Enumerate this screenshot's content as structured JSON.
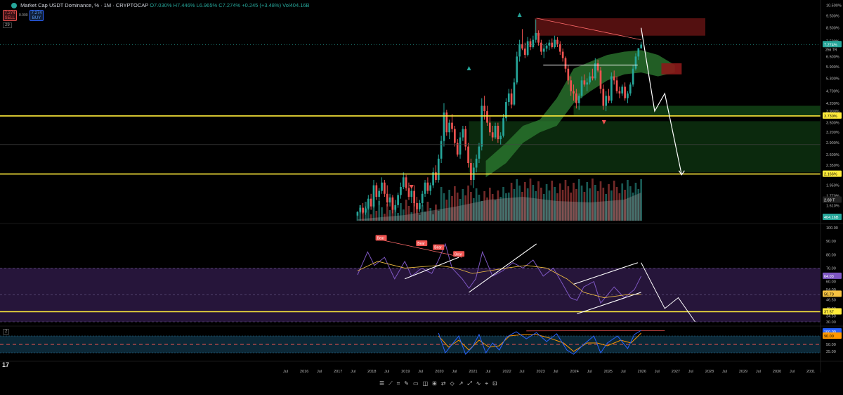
{
  "header": {
    "title": "Market Cap USDT Dominance, %",
    "interval": "1M",
    "source": "CRYPTOCAP",
    "open": "O7.030%",
    "high": "H7.446%",
    "low": "L6.965%",
    "close": "C7.274%",
    "change": "+0.245 (+3.48%)",
    "volume": "Vol404.16B",
    "sell_price": "7.274",
    "sell_label": "SELL",
    "buy_price": "7.274",
    "buy_label": "BUY",
    "spread": "0.000",
    "indicator_count": "29",
    "stoch_count": "2"
  },
  "colors": {
    "up": "#26a69a",
    "down": "#ef5350",
    "support": "#ffeb3b",
    "rsi": "#7e57c2",
    "rsi_ma": "#f5c242",
    "stoch_k": "#2962ff",
    "stoch_d": "#ff9800",
    "cloud": "#2e7d32",
    "resistance": "#8b1a1a"
  },
  "icons": [
    "trading-view-logo-icon",
    "chart-toolbar-icons"
  ],
  "chart_data": [
    {
      "type": "candlestick",
      "title": "Market Cap USDT Dominance, %",
      "scale": "log",
      "price_axis": [
        "10.500%",
        "9.500%",
        "8.500%",
        "7.500%",
        "6.500%",
        "5.900%",
        "5.300%",
        "4.700%",
        "4.200%",
        "3.900%",
        "3.500%",
        "3.200%",
        "2.900%",
        "2.600%",
        "2.350%",
        "1.950%",
        "1.770%",
        "1.610%",
        "1.470%"
      ],
      "price_labels": {
        "current": "7.274%",
        "current_sub": "256 TR",
        "level_high": "3.730%",
        "level_low": "2.166%",
        "volume_value": "2.69 T",
        "volume_total": "404.16B"
      },
      "levels": {
        "support_1": 3.73,
        "support_2": 2.166
      },
      "candles": [
        [
          2017.6,
          1.47,
          1.53,
          1.46,
          1.52
        ],
        [
          2017.68,
          1.52,
          1.62,
          1.5,
          1.58
        ],
        [
          2017.76,
          1.58,
          1.65,
          1.49,
          1.51
        ],
        [
          2017.84,
          1.51,
          1.6,
          1.48,
          1.57
        ],
        [
          2017.92,
          1.57,
          1.78,
          1.55,
          1.72
        ],
        [
          2018.0,
          1.72,
          1.8,
          1.55,
          1.6
        ],
        [
          2018.08,
          1.6,
          2.05,
          1.58,
          1.95
        ],
        [
          2018.16,
          1.95,
          2.0,
          1.7,
          1.75
        ],
        [
          2018.24,
          1.75,
          1.9,
          1.62,
          1.85
        ],
        [
          2018.32,
          1.85,
          2.1,
          1.8,
          2.0
        ],
        [
          2018.4,
          2.0,
          2.05,
          1.75,
          1.8
        ],
        [
          2018.48,
          1.8,
          1.95,
          1.6,
          1.66
        ],
        [
          2018.56,
          1.66,
          1.8,
          1.6,
          1.74
        ],
        [
          2018.64,
          1.74,
          1.78,
          1.5,
          1.55
        ],
        [
          2018.72,
          1.55,
          1.7,
          1.52,
          1.62
        ],
        [
          2018.8,
          1.62,
          1.82,
          1.58,
          1.78
        ],
        [
          2018.88,
          1.78,
          2.0,
          1.72,
          1.92
        ],
        [
          2018.96,
          1.92,
          2.2,
          1.88,
          2.1
        ],
        [
          2019.04,
          2.1,
          2.15,
          1.85,
          1.9
        ],
        [
          2019.12,
          1.9,
          2.0,
          1.7,
          1.75
        ],
        [
          2019.2,
          1.75,
          1.9,
          1.65,
          1.85
        ],
        [
          2019.28,
          1.85,
          1.95,
          1.6,
          1.65
        ],
        [
          2019.36,
          1.65,
          1.75,
          1.5,
          1.56
        ],
        [
          2019.44,
          1.56,
          1.7,
          1.52,
          1.65
        ],
        [
          2019.52,
          1.65,
          1.85,
          1.6,
          1.8
        ],
        [
          2019.6,
          1.8,
          2.05,
          1.75,
          2.0
        ],
        [
          2019.68,
          2.0,
          2.1,
          1.8,
          1.85
        ],
        [
          2019.76,
          1.85,
          2.0,
          1.78,
          1.95
        ],
        [
          2019.84,
          1.95,
          2.3,
          1.9,
          2.2
        ],
        [
          2019.92,
          2.2,
          2.35,
          2.0,
          2.05
        ],
        [
          2020.0,
          2.05,
          2.6,
          2.0,
          2.5
        ],
        [
          2020.08,
          2.5,
          3.1,
          2.4,
          2.95
        ],
        [
          2020.16,
          2.95,
          4.2,
          2.8,
          3.85
        ],
        [
          2020.24,
          3.85,
          3.95,
          3.1,
          3.2
        ],
        [
          2020.32,
          3.2,
          3.6,
          3.0,
          3.5
        ],
        [
          2020.4,
          3.5,
          3.8,
          3.2,
          3.3
        ],
        [
          2020.48,
          3.3,
          3.4,
          2.8,
          2.9
        ],
        [
          2020.56,
          2.9,
          3.0,
          2.55,
          2.6
        ],
        [
          2020.64,
          2.6,
          3.2,
          2.5,
          3.05
        ],
        [
          2020.72,
          3.05,
          3.4,
          2.95,
          3.3
        ],
        [
          2020.8,
          3.3,
          3.4,
          2.7,
          2.8
        ],
        [
          2020.88,
          2.8,
          2.9,
          2.3,
          2.4
        ],
        [
          2020.96,
          2.4,
          2.5,
          1.95,
          2.05
        ],
        [
          2021.04,
          2.05,
          2.4,
          1.9,
          2.3
        ],
        [
          2021.12,
          2.3,
          2.6,
          2.2,
          2.5
        ],
        [
          2021.2,
          2.5,
          2.9,
          2.4,
          2.8
        ],
        [
          2021.28,
          2.8,
          4.4,
          2.7,
          4.1
        ],
        [
          2021.36,
          4.1,
          4.5,
          3.6,
          3.9
        ],
        [
          2021.44,
          3.9,
          4.1,
          3.4,
          3.5
        ],
        [
          2021.52,
          3.5,
          3.7,
          3.1,
          3.2
        ],
        [
          2021.6,
          3.2,
          3.4,
          2.95,
          3.05
        ],
        [
          2021.68,
          3.05,
          3.5,
          3.0,
          3.4
        ],
        [
          2021.76,
          3.4,
          3.5,
          2.9,
          3.0
        ],
        [
          2021.84,
          3.0,
          3.2,
          2.85,
          3.1
        ],
        [
          2021.92,
          3.1,
          3.8,
          3.05,
          3.65
        ],
        [
          2022.0,
          3.65,
          4.4,
          3.55,
          4.25
        ],
        [
          2022.08,
          4.25,
          4.8,
          4.1,
          4.6
        ],
        [
          2022.16,
          4.6,
          4.8,
          4.0,
          4.15
        ],
        [
          2022.24,
          4.15,
          5.3,
          4.1,
          5.1
        ],
        [
          2022.32,
          5.1,
          6.8,
          5.0,
          6.5
        ],
        [
          2022.4,
          6.5,
          7.6,
          6.2,
          7.3
        ],
        [
          2022.48,
          7.3,
          8.4,
          6.9,
          7.0
        ],
        [
          2022.56,
          7.0,
          7.4,
          6.4,
          6.6
        ],
        [
          2022.64,
          6.6,
          7.8,
          6.5,
          7.5
        ],
        [
          2022.72,
          7.5,
          7.7,
          6.9,
          7.1
        ],
        [
          2022.8,
          7.1,
          7.9,
          7.0,
          7.6
        ],
        [
          2022.88,
          7.6,
          9.2,
          7.4,
          8.1
        ],
        [
          2022.96,
          8.1,
          8.3,
          7.2,
          7.4
        ],
        [
          2023.04,
          7.4,
          7.6,
          6.6,
          6.8
        ],
        [
          2023.12,
          6.8,
          7.3,
          6.4,
          7.0
        ],
        [
          2023.2,
          7.0,
          7.4,
          6.8,
          7.2
        ],
        [
          2023.28,
          7.2,
          7.6,
          6.9,
          7.4
        ],
        [
          2023.36,
          7.4,
          7.7,
          7.0,
          7.1
        ],
        [
          2023.44,
          7.1,
          7.9,
          7.0,
          7.6
        ],
        [
          2023.52,
          7.6,
          7.8,
          7.1,
          7.3
        ],
        [
          2023.6,
          7.3,
          7.5,
          6.6,
          6.8
        ],
        [
          2023.68,
          6.8,
          7.0,
          6.2,
          6.4
        ],
        [
          2023.76,
          6.4,
          6.5,
          5.6,
          5.8
        ],
        [
          2023.84,
          5.8,
          6.0,
          5.0,
          5.2
        ],
        [
          2023.92,
          5.2,
          5.4,
          4.5,
          4.7
        ],
        [
          2024.0,
          4.7,
          5.0,
          4.3,
          4.6
        ],
        [
          2024.08,
          4.6,
          4.8,
          4.0,
          4.2
        ],
        [
          2024.16,
          4.2,
          4.6,
          3.95,
          4.5
        ],
        [
          2024.24,
          4.5,
          5.4,
          4.4,
          5.2
        ],
        [
          2024.32,
          5.2,
          5.5,
          4.9,
          5.0
        ],
        [
          2024.4,
          5.0,
          5.3,
          4.7,
          5.1
        ],
        [
          2024.48,
          5.1,
          5.6,
          5.0,
          5.4
        ],
        [
          2024.56,
          5.4,
          5.8,
          5.2,
          5.3
        ],
        [
          2024.64,
          5.3,
          6.4,
          5.2,
          6.1
        ],
        [
          2024.72,
          6.1,
          6.3,
          5.6,
          5.7
        ],
        [
          2024.8,
          5.7,
          5.9,
          4.6,
          4.8
        ],
        [
          2024.88,
          4.8,
          5.0,
          3.95,
          4.1
        ],
        [
          2024.96,
          4.1,
          4.7,
          3.9,
          4.5
        ],
        [
          2025.04,
          4.5,
          4.8,
          4.2,
          4.3
        ],
        [
          2025.12,
          4.3,
          5.6,
          4.2,
          5.4
        ],
        [
          2025.2,
          5.4,
          5.7,
          5.0,
          5.2
        ],
        [
          2025.28,
          5.2,
          5.4,
          4.6,
          4.7
        ],
        [
          2025.36,
          4.7,
          4.9,
          4.4,
          4.6
        ],
        [
          2025.44,
          4.6,
          5.0,
          4.5,
          4.9
        ],
        [
          2025.52,
          4.9,
          5.1,
          4.3,
          4.4
        ],
        [
          2025.6,
          4.4,
          4.7,
          4.2,
          4.6
        ],
        [
          2025.68,
          4.6,
          5.1,
          4.5,
          5.0
        ],
        [
          2025.76,
          5.0,
          6.0,
          4.9,
          5.8
        ],
        [
          2025.84,
          5.8,
          6.7,
          5.7,
          6.5
        ],
        [
          2025.92,
          6.5,
          7.0,
          6.3,
          7.03
        ],
        [
          2026.0,
          7.03,
          7.45,
          6.97,
          7.27
        ]
      ],
      "cloud_band": [
        [
          2021.4,
          2.1,
          2.45
        ],
        [
          2022.0,
          2.4,
          2.9
        ],
        [
          2022.5,
          2.9,
          3.4
        ],
        [
          2023.0,
          3.2,
          3.6
        ],
        [
          2023.5,
          3.4,
          4.4
        ],
        [
          2024.0,
          4.2,
          5.8
        ],
        [
          2024.5,
          4.7,
          6.2
        ],
        [
          2025.0,
          5.2,
          6.6
        ],
        [
          2025.5,
          5.5,
          6.8
        ],
        [
          2026.0,
          5.6,
          6.9
        ],
        [
          2026.5,
          5.4,
          6.6
        ],
        [
          2027.0,
          5.6,
          6.0
        ]
      ],
      "projection": [
        [
          2026.0,
          8.5
        ],
        [
          2026.4,
          3.9
        ],
        [
          2026.7,
          4.6
        ],
        [
          2027.2,
          2.15
        ]
      ],
      "trendline": [
        [
          2022.9,
          9.3
        ],
        [
          2026.0,
          7.6
        ]
      ]
    },
    {
      "type": "line",
      "title": "",
      "y_axis": [
        "100.00",
        "90.00",
        "80.00",
        "70.00",
        "60.00",
        "54.00",
        "46.50",
        "40.00",
        "34.50",
        "30.00"
      ],
      "y_labels": {
        "rsi": "64.03",
        "rsi_ma": "50.70",
        "level": "37.57"
      },
      "ylim": [
        30,
        100
      ],
      "band": [
        30,
        70
      ],
      "rsi": [
        [
          2017.6,
          65
        ],
        [
          2017.9,
          82
        ],
        [
          2018.1,
          72
        ],
        [
          2018.4,
          78
        ],
        [
          2018.7,
          62
        ],
        [
          2019.0,
          75
        ],
        [
          2019.2,
          64
        ],
        [
          2019.5,
          70
        ],
        [
          2019.8,
          66
        ],
        [
          2020.0,
          76
        ],
        [
          2020.2,
          88
        ],
        [
          2020.4,
          70
        ],
        [
          2020.7,
          62
        ],
        [
          2020.9,
          55
        ],
        [
          2021.1,
          62
        ],
        [
          2021.3,
          82
        ],
        [
          2021.6,
          64
        ],
        [
          2021.9,
          68
        ],
        [
          2022.2,
          74
        ],
        [
          2022.5,
          70
        ],
        [
          2022.8,
          76
        ],
        [
          2023.1,
          64
        ],
        [
          2023.4,
          70
        ],
        [
          2023.7,
          57
        ],
        [
          2023.9,
          48
        ],
        [
          2024.1,
          46
        ],
        [
          2024.3,
          56
        ],
        [
          2024.6,
          60
        ],
        [
          2024.8,
          44
        ],
        [
          2025.0,
          50
        ],
        [
          2025.2,
          56
        ],
        [
          2025.5,
          48
        ],
        [
          2025.8,
          54
        ],
        [
          2026.0,
          64
        ]
      ],
      "rsi_ma": [
        [
          2017.6,
          68
        ],
        [
          2018.2,
          75
        ],
        [
          2019.0,
          70
        ],
        [
          2020.0,
          72
        ],
        [
          2020.5,
          70
        ],
        [
          2021.0,
          66
        ],
        [
          2021.5,
          68
        ],
        [
          2022.0,
          70
        ],
        [
          2022.6,
          72
        ],
        [
          2023.2,
          70
        ],
        [
          2023.8,
          62
        ],
        [
          2024.3,
          52
        ],
        [
          2024.9,
          48
        ],
        [
          2025.5,
          50
        ],
        [
          2026.0,
          50.7
        ]
      ],
      "signals": [
        {
          "x": 2018.3,
          "y": 92,
          "label": "Bear"
        },
        {
          "x": 2019.5,
          "y": 88,
          "label": "Bear"
        },
        {
          "x": 2020.0,
          "y": 85,
          "label": "Bear"
        },
        {
          "x": 2020.6,
          "y": 80,
          "label": "Bear"
        }
      ]
    },
    {
      "type": "line",
      "title": "",
      "y_axis": [
        "100.00",
        "75.00",
        "50.00",
        "25.00"
      ],
      "y_labels": {
        "k": "100.00",
        "d": "90.00"
      },
      "ylim": [
        0,
        100
      ],
      "stoch_k": [
        [
          2020.0,
          90
        ],
        [
          2020.2,
          20
        ],
        [
          2020.4,
          50
        ],
        [
          2020.6,
          80
        ],
        [
          2020.8,
          15
        ],
        [
          2021.0,
          40
        ],
        [
          2021.2,
          85
        ],
        [
          2021.4,
          20
        ],
        [
          2021.6,
          55
        ],
        [
          2021.8,
          30
        ],
        [
          2022.0,
          75
        ],
        [
          2022.3,
          95
        ],
        [
          2022.6,
          70
        ],
        [
          2022.9,
          92
        ],
        [
          2023.2,
          60
        ],
        [
          2023.5,
          88
        ],
        [
          2023.8,
          30
        ],
        [
          2024.0,
          15
        ],
        [
          2024.3,
          50
        ],
        [
          2024.6,
          80
        ],
        [
          2024.8,
          20
        ],
        [
          2025.0,
          55
        ],
        [
          2025.3,
          80
        ],
        [
          2025.6,
          35
        ],
        [
          2025.8,
          85
        ],
        [
          2026.0,
          100
        ]
      ],
      "stoch_d": [
        [
          2020.0,
          80
        ],
        [
          2020.3,
          40
        ],
        [
          2020.6,
          65
        ],
        [
          2020.9,
          30
        ],
        [
          2021.2,
          65
        ],
        [
          2021.5,
          40
        ],
        [
          2021.8,
          45
        ],
        [
          2022.1,
          80
        ],
        [
          2022.5,
          85
        ],
        [
          2022.9,
          85
        ],
        [
          2023.3,
          72
        ],
        [
          2023.7,
          55
        ],
        [
          2024.0,
          25
        ],
        [
          2024.4,
          55
        ],
        [
          2024.7,
          55
        ],
        [
          2025.0,
          45
        ],
        [
          2025.4,
          65
        ],
        [
          2025.7,
          55
        ],
        [
          2026.0,
          90
        ]
      ]
    }
  ],
  "time_axis": [
    "Jul",
    "2016",
    "Jul",
    "2017",
    "Jul",
    "2018",
    "Jul",
    "2019",
    "Jul",
    "2020",
    "Jul",
    "2021",
    "Jul",
    "2022",
    "Jul",
    "2023",
    "Jul",
    "2024",
    "Jul",
    "2025",
    "Jul",
    "2026",
    "Jul",
    "2027",
    "Jul",
    "2028",
    "Jul",
    "2029",
    "Jul",
    "2030",
    "Jul",
    "2031"
  ]
}
